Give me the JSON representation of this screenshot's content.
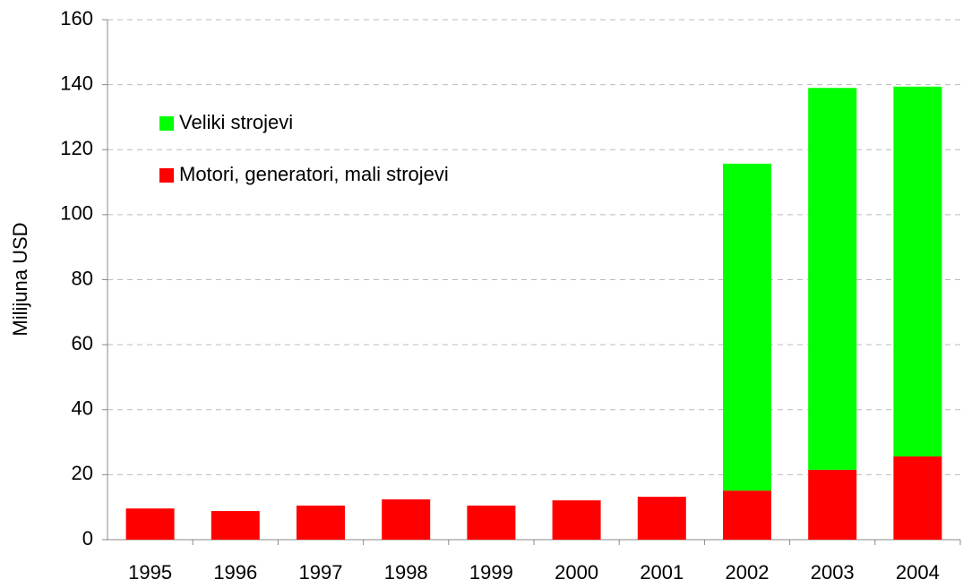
{
  "chart_data": {
    "type": "stacked_bar",
    "y_label": "Milijuna USD",
    "categories": [
      "1995",
      "1996",
      "1997",
      "1998",
      "1999",
      "2000",
      "2001",
      "2002",
      "2003",
      "2004"
    ],
    "series": [
      {
        "name": "Motori, generatori, mali strojevi",
        "color": "#ff0000",
        "values": [
          9.6,
          8.8,
          10.5,
          12.4,
          10.5,
          12.1,
          13.2,
          15.1,
          21.5,
          25.6
        ]
      },
      {
        "name": "Veliki strojevi",
        "color": "#00ff00",
        "values": [
          0,
          0,
          0,
          0,
          0,
          0,
          0,
          100.6,
          117.5,
          113.8
        ]
      }
    ],
    "ylim": [
      0,
      160
    ],
    "yticks": [
      0,
      20,
      40,
      60,
      80,
      100,
      120,
      140,
      160
    ],
    "grid": true,
    "legend": "upper left"
  }
}
